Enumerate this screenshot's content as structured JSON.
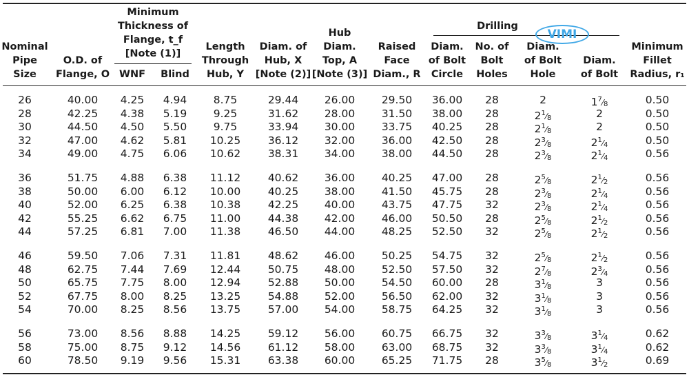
{
  "headers": {
    "nps": [
      "Nominal",
      "Pipe",
      "Size"
    ],
    "od": [
      "O.D. of",
      "Flange, O"
    ],
    "min_thick": [
      "Minimum",
      "Thickness of",
      "Flange, t_f",
      "[Note (1)]"
    ],
    "wnf": "WNF",
    "blind": "Blind",
    "length": [
      "Length",
      "Through",
      "Hub, Y"
    ],
    "diam_hub": [
      "Diam. of",
      "Hub, X",
      "[Note (2)]"
    ],
    "hub_top": [
      "Hub",
      "Diam.",
      "Top, A",
      "[Note (3)]"
    ],
    "raised": [
      "Raised",
      "Face",
      "Diam., R"
    ],
    "drilling": "Drilling",
    "bolt_circle": [
      "Diam.",
      "of Bolt",
      "Circle"
    ],
    "bolt_holes": [
      "No. of",
      "Bolt",
      "Holes"
    ],
    "bolt_hole_diam": [
      "Diam.",
      "of Bolt",
      "Hole"
    ],
    "bolt_diam": [
      "Diam.",
      "of Bolt"
    ],
    "fillet": [
      "Minimum",
      "Fillet",
      "Radius, r₁"
    ]
  },
  "stamp_text": "VIMI",
  "rows": [
    [
      "26",
      "40.00",
      "4.25",
      "4.94",
      "8.75",
      "29.44",
      "26.00",
      "29.50",
      "36.00",
      "28",
      "2",
      "1 7/8",
      "0.50"
    ],
    [
      "28",
      "42.25",
      "4.38",
      "5.19",
      "9.25",
      "31.62",
      "28.00",
      "31.50",
      "38.00",
      "28",
      "2 1/8",
      "2",
      "0.50"
    ],
    [
      "30",
      "44.50",
      "4.50",
      "5.50",
      "9.75",
      "33.94",
      "30.00",
      "33.75",
      "40.25",
      "28",
      "2 1/8",
      "2",
      "0.50"
    ],
    [
      "32",
      "47.00",
      "4.62",
      "5.81",
      "10.25",
      "36.12",
      "32.00",
      "36.00",
      "42.50",
      "28",
      "2 3/8",
      "2 1/4",
      "0.50"
    ],
    [
      "34",
      "49.00",
      "4.75",
      "6.06",
      "10.62",
      "38.31",
      "34.00",
      "38.00",
      "44.50",
      "28",
      "2 3/8",
      "2 1/4",
      "0.56"
    ],
    [
      "36",
      "51.75",
      "4.88",
      "6.38",
      "11.12",
      "40.62",
      "36.00",
      "40.25",
      "47.00",
      "28",
      "2 5/8",
      "2 1/2",
      "0.56"
    ],
    [
      "38",
      "50.00",
      "6.00",
      "6.12",
      "10.00",
      "40.25",
      "38.00",
      "41.50",
      "45.75",
      "28",
      "2 3/8",
      "2 1/4",
      "0.56"
    ],
    [
      "40",
      "52.00",
      "6.25",
      "6.38",
      "10.38",
      "42.25",
      "40.00",
      "43.75",
      "47.75",
      "32",
      "2 3/8",
      "2 1/4",
      "0.56"
    ],
    [
      "42",
      "55.25",
      "6.62",
      "6.75",
      "11.00",
      "44.38",
      "42.00",
      "46.00",
      "50.50",
      "28",
      "2 5/8",
      "2 1/2",
      "0.56"
    ],
    [
      "44",
      "57.25",
      "6.81",
      "7.00",
      "11.38",
      "46.50",
      "44.00",
      "48.25",
      "52.50",
      "32",
      "2 5/8",
      "2 1/2",
      "0.56"
    ],
    [
      "46",
      "59.50",
      "7.06",
      "7.31",
      "11.81",
      "48.62",
      "46.00",
      "50.25",
      "54.75",
      "32",
      "2 5/8",
      "2 1/2",
      "0.56"
    ],
    [
      "48",
      "62.75",
      "7.44",
      "7.69",
      "12.44",
      "50.75",
      "48.00",
      "52.50",
      "57.50",
      "32",
      "2 7/8",
      "2 3/4",
      "0.56"
    ],
    [
      "50",
      "65.75",
      "7.75",
      "8.00",
      "12.94",
      "52.88",
      "50.00",
      "54.50",
      "60.00",
      "28",
      "3 1/8",
      "3",
      "0.56"
    ],
    [
      "52",
      "67.75",
      "8.00",
      "8.25",
      "13.25",
      "54.88",
      "52.00",
      "56.50",
      "62.00",
      "32",
      "3 1/8",
      "3",
      "0.56"
    ],
    [
      "54",
      "70.00",
      "8.25",
      "8.56",
      "13.75",
      "57.00",
      "54.00",
      "58.75",
      "64.25",
      "32",
      "3 1/8",
      "3",
      "0.56"
    ],
    [
      "56",
      "73.00",
      "8.56",
      "8.88",
      "14.25",
      "59.12",
      "56.00",
      "60.75",
      "66.75",
      "32",
      "3 3/8",
      "3 1/4",
      "0.62"
    ],
    [
      "58",
      "75.00",
      "8.75",
      "9.12",
      "14.56",
      "61.12",
      "58.00",
      "63.00",
      "68.75",
      "32",
      "3 3/8",
      "3 1/4",
      "0.62"
    ],
    [
      "60",
      "78.50",
      "9.19",
      "9.56",
      "15.31",
      "63.38",
      "60.00",
      "65.25",
      "71.75",
      "28",
      "3 5/8",
      "3 1/2",
      "0.69"
    ]
  ]
}
